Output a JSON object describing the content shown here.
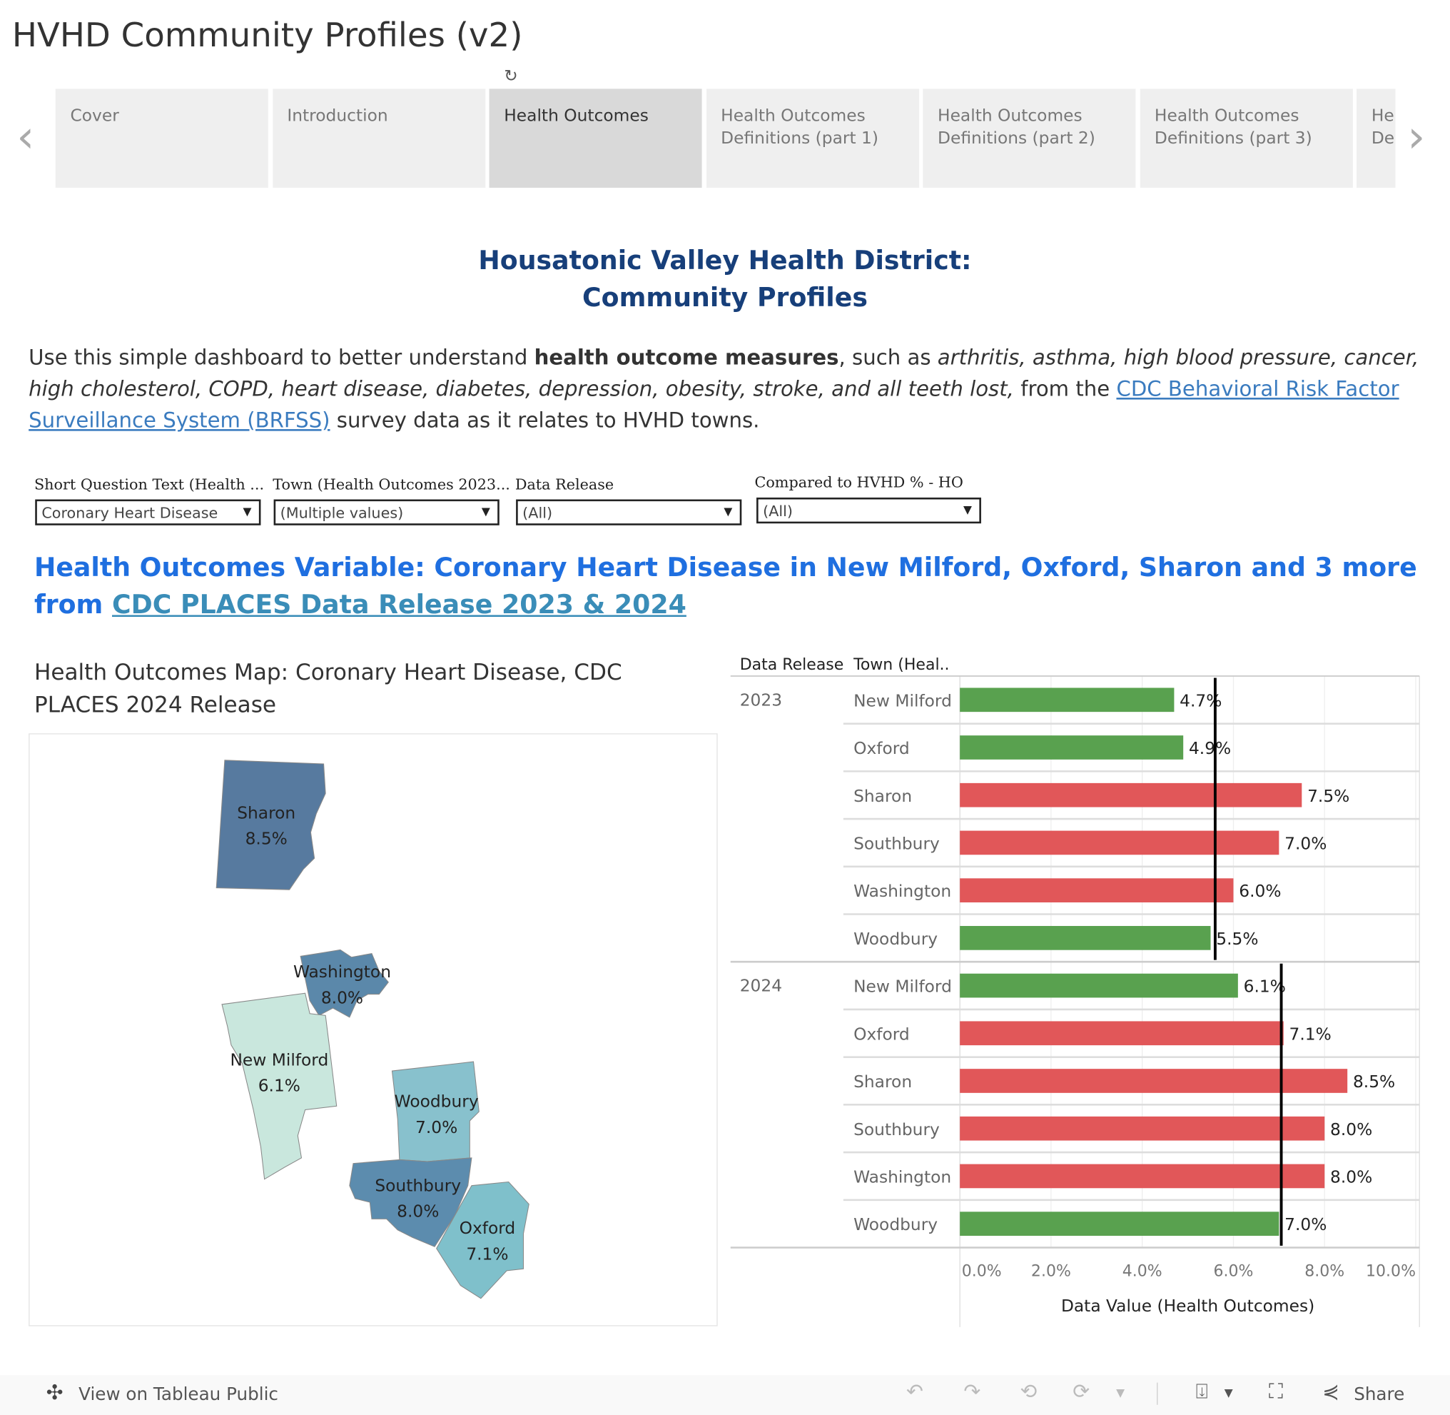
{
  "title": "HVHD Community Profiles (v2)",
  "tabs": [
    {
      "label": "Cover"
    },
    {
      "label": "Introduction"
    },
    {
      "label": "Health Outcomes",
      "active": true
    },
    {
      "label": "Health Outcomes Definitions (part 1)"
    },
    {
      "label": "Health Outcomes Definitions (part 2)"
    },
    {
      "label": "Health Outcomes Definitions (part 3)"
    },
    {
      "label": "He De"
    }
  ],
  "heading": {
    "line1": "Housatonic Valley Health District:",
    "line2": "Community Profiles"
  },
  "intro": {
    "t1": "Use this simple dashboard to better understand ",
    "bold": "health outcome measures",
    "t2": ", such as ",
    "italic": "arthritis, asthma, high blood pressure, cancer, high cholesterol, COPD, heart disease, diabetes, depression, obesity, stroke, and all teeth lost,",
    "t3": " from the ",
    "link": "CDC Behavioral Risk Factor Surveillance System (BRFSS)",
    "t4": " survey data as it relates to HVHD towns."
  },
  "filters": [
    {
      "label": "Short Question Text (Health ...",
      "value": "Coronary Heart Disease"
    },
    {
      "label": "Town (Health Outcomes 2023...",
      "value": "(Multiple values)"
    },
    {
      "label": "Data Release",
      "value": "(All)"
    },
    {
      "label": "Compared to HVHD % - HO",
      "value": "(All)"
    }
  ],
  "variable_title": {
    "text": "Health Outcomes Variable: Coronary Heart Disease in New Milford, Oxford, Sharon and 3 more from ",
    "link": "CDC PLACES Data Release 2023 & 2024"
  },
  "map": {
    "title": "Health Outcomes Map: Coronary Heart Disease, CDC PLACES 2024 Release",
    "towns": [
      {
        "name": "Sharon",
        "value": "8.5%",
        "color": "#577a9f"
      },
      {
        "name": "Washington",
        "value": "8.0%",
        "color": "#5b88aa"
      },
      {
        "name": "New Milford",
        "value": "6.1%",
        "color": "#c9e7dd"
      },
      {
        "name": "Woodbury",
        "value": "7.0%",
        "color": "#88c1cd"
      },
      {
        "name": "Southbury",
        "value": "8.0%",
        "color": "#5c8cae"
      },
      {
        "name": "Oxford",
        "value": "7.1%",
        "color": "#7fc0cb"
      }
    ]
  },
  "chart_data": {
    "type": "bar",
    "orientation": "horizontal",
    "row_headers": [
      "Data Release",
      "Town (Heal.."
    ],
    "xlabel": "Data Value (Health Outcomes)",
    "xlim": [
      0,
      10
    ],
    "ticks": [
      "0.0%",
      "2.0%",
      "4.0%",
      "6.0%",
      "8.0%",
      "10.0%"
    ],
    "colors": {
      "below": "#59a14f",
      "above": "#e15759",
      "reference": "#000000"
    },
    "groups": [
      {
        "release": "2023",
        "reference": 5.6,
        "rows": [
          {
            "town": "New Milford",
            "value": 4.7,
            "label": "4.7%",
            "status": "below"
          },
          {
            "town": "Oxford",
            "value": 4.9,
            "label": "4.9%",
            "status": "below"
          },
          {
            "town": "Sharon",
            "value": 7.5,
            "label": "7.5%",
            "status": "above"
          },
          {
            "town": "Southbury",
            "value": 7.0,
            "label": "7.0%",
            "status": "above"
          },
          {
            "town": "Washington",
            "value": 6.0,
            "label": "6.0%",
            "status": "above"
          },
          {
            "town": "Woodbury",
            "value": 5.5,
            "label": "5.5%",
            "status": "below"
          }
        ]
      },
      {
        "release": "2024",
        "reference": 7.05,
        "rows": [
          {
            "town": "New Milford",
            "value": 6.1,
            "label": "6.1%",
            "status": "below"
          },
          {
            "town": "Oxford",
            "value": 7.1,
            "label": "7.1%",
            "status": "above"
          },
          {
            "town": "Sharon",
            "value": 8.5,
            "label": "8.5%",
            "status": "above"
          },
          {
            "town": "Southbury",
            "value": 8.0,
            "label": "8.0%",
            "status": "above"
          },
          {
            "town": "Washington",
            "value": 8.0,
            "label": "8.0%",
            "status": "above"
          },
          {
            "town": "Woodbury",
            "value": 7.0,
            "label": "7.0%",
            "status": "below"
          }
        ]
      }
    ]
  },
  "footer": {
    "view_label": "View on Tableau Public",
    "share_label": "Share"
  }
}
